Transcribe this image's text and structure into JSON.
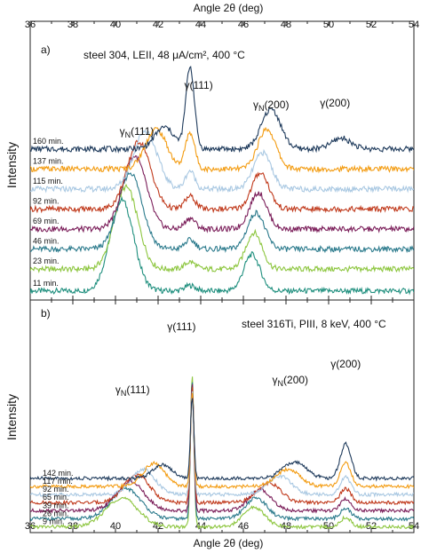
{
  "chart_data": [
    {
      "type": "line",
      "panel_label": "a)",
      "condition": "steel 304, LEII, 48 μA/cm², 400 °C",
      "xlabel_top": "Angle 2θ (deg)",
      "ylabel": "Intensity",
      "xlim": [
        36,
        54
      ],
      "xticks": [
        "36",
        "38",
        "40",
        "42",
        "44",
        "46",
        "48",
        "50",
        "52",
        "54"
      ],
      "peak_labels": [
        {
          "text": "γN(111)",
          "x": 41.0
        },
        {
          "text": "γ(111)",
          "x": 43.9
        },
        {
          "text": "γN(200)",
          "x": 47.3
        },
        {
          "text": "γ(200)",
          "x": 50.3
        }
      ],
      "series": [
        {
          "name": "11 min.",
          "color": "#1f8f7e",
          "baseline": 0.05,
          "peaks": [
            [
              40.3,
              0.5,
              0.55
            ],
            [
              43.5,
              0.03,
              0.25
            ],
            [
              46.4,
              0.2,
              0.38
            ]
          ]
        },
        {
          "name": "23 min.",
          "color": "#8dc63f",
          "baseline": 0.17,
          "peaks": [
            [
              40.5,
              0.45,
              0.55
            ],
            [
              43.5,
              0.04,
              0.25
            ],
            [
              46.5,
              0.2,
              0.38
            ]
          ]
        },
        {
          "name": "46 min.",
          "color": "#2b7a8c",
          "baseline": 0.28,
          "peaks": [
            [
              40.7,
              0.42,
              0.55
            ],
            [
              43.5,
              0.05,
              0.25
            ],
            [
              46.6,
              0.2,
              0.4
            ]
          ]
        },
        {
          "name": "69 min.",
          "color": "#7b1e5a",
          "baseline": 0.39,
          "peaks": [
            [
              40.9,
              0.4,
              0.55
            ],
            [
              43.5,
              0.06,
              0.25
            ],
            [
              46.7,
              0.2,
              0.4
            ]
          ]
        },
        {
          "name": "92 min.",
          "color": "#c0391b",
          "baseline": 0.5,
          "peaks": [
            [
              41.1,
              0.37,
              0.55
            ],
            [
              43.5,
              0.07,
              0.25
            ],
            [
              46.8,
              0.2,
              0.4
            ]
          ]
        },
        {
          "name": "115 min.",
          "color": "#a9c8e2",
          "baseline": 0.61,
          "peaks": [
            [
              41.4,
              0.32,
              0.55
            ],
            [
              43.5,
              0.1,
              0.22
            ],
            [
              46.9,
              0.2,
              0.42
            ]
          ]
        },
        {
          "name": "137 min.",
          "color": "#f39c12",
          "baseline": 0.72,
          "peaks": [
            [
              41.9,
              0.22,
              0.5
            ],
            [
              43.5,
              0.2,
              0.22
            ],
            [
              47.1,
              0.22,
              0.42
            ]
          ]
        },
        {
          "name": "160 min.",
          "color": "#1f3b5c",
          "baseline": 0.83,
          "peaks": [
            [
              42.3,
              0.12,
              0.45
            ],
            [
              43.5,
              0.45,
              0.2
            ],
            [
              47.3,
              0.22,
              0.45
            ],
            [
              50.6,
              0.06,
              0.45
            ]
          ]
        }
      ]
    },
    {
      "type": "line",
      "panel_label": "b)",
      "condition": "steel 316Ti, PIII, 8 keV, 400 °C",
      "xlabel": "Angle 2θ (deg)",
      "ylabel": "Intensity",
      "xlim": [
        36,
        54
      ],
      "xticks": [
        "36",
        "38",
        "40",
        "42",
        "44",
        "46",
        "48",
        "50",
        "52",
        "54"
      ],
      "peak_labels": [
        {
          "text": "γN(111)",
          "x": 40.8
        },
        {
          "text": "γ(111)",
          "x": 43.1
        },
        {
          "text": "γN(200)",
          "x": 48.2
        },
        {
          "text": "γ(200)",
          "x": 50.8
        }
      ],
      "series": [
        {
          "name": "9 min.",
          "color": "#8dc63f",
          "baseline": 0.05,
          "peaks": [
            [
              40.3,
              0.25,
              0.75
            ],
            [
              43.6,
              1.3,
              0.08
            ],
            [
              46.5,
              0.17,
              0.5
            ],
            [
              50.8,
              0.08,
              0.25
            ]
          ]
        },
        {
          "name": "26 min.",
          "color": "#2b7a8c",
          "baseline": 0.12,
          "peaks": [
            [
              40.5,
              0.26,
              0.7
            ],
            [
              43.6,
              1.2,
              0.08
            ],
            [
              46.6,
              0.18,
              0.5
            ],
            [
              50.8,
              0.09,
              0.25
            ]
          ]
        },
        {
          "name": "39 min.",
          "color": "#7b1e5a",
          "baseline": 0.19,
          "peaks": [
            [
              40.7,
              0.25,
              0.65
            ],
            [
              43.6,
              1.1,
              0.08
            ],
            [
              46.8,
              0.18,
              0.52
            ],
            [
              50.8,
              0.1,
              0.25
            ]
          ]
        },
        {
          "name": "65 min.",
          "color": "#c0391b",
          "baseline": 0.26,
          "peaks": [
            [
              41.0,
              0.24,
              0.6
            ],
            [
              43.6,
              1.0,
              0.08
            ],
            [
              47.2,
              0.17,
              0.55
            ],
            [
              50.8,
              0.12,
              0.25
            ]
          ]
        },
        {
          "name": "92 min.",
          "color": "#a9c8e2",
          "baseline": 0.33,
          "peaks": [
            [
              41.3,
              0.22,
              0.55
            ],
            [
              43.6,
              0.9,
              0.08
            ],
            [
              47.7,
              0.16,
              0.55
            ],
            [
              50.8,
              0.15,
              0.25
            ]
          ]
        },
        {
          "name": "117 min.",
          "color": "#f39c12",
          "baseline": 0.4,
          "peaks": [
            [
              41.8,
              0.2,
              0.5
            ],
            [
              43.6,
              0.8,
              0.08
            ],
            [
              48.1,
              0.15,
              0.55
            ],
            [
              50.8,
              0.2,
              0.25
            ]
          ]
        },
        {
          "name": "142 min.",
          "color": "#1f3b5c",
          "baseline": 0.47,
          "peaks": [
            [
              42.2,
              0.12,
              0.45
            ],
            [
              43.6,
              0.7,
              0.08
            ],
            [
              48.4,
              0.14,
              0.55
            ],
            [
              50.8,
              0.3,
              0.25
            ]
          ]
        }
      ]
    }
  ]
}
